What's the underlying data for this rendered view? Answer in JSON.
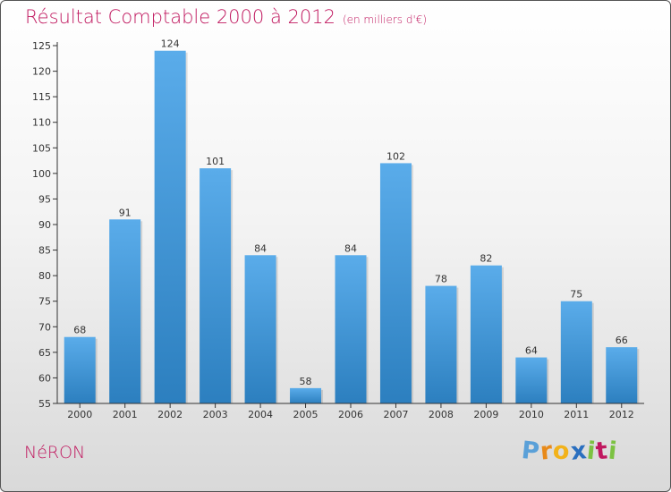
{
  "chart_data": {
    "type": "bar",
    "title": "Résultat Comptable 2000 à 2012",
    "subtitle": "(en milliers d'€)",
    "categories": [
      "2000",
      "2001",
      "2002",
      "2003",
      "2004",
      "2005",
      "2006",
      "2007",
      "2008",
      "2009",
      "2010",
      "2011",
      "2012"
    ],
    "values": [
      68,
      91,
      124,
      101,
      84,
      58,
      84,
      102,
      78,
      82,
      64,
      75,
      66
    ],
    "ylim": [
      55,
      125
    ],
    "yticks": [
      55,
      60,
      65,
      70,
      75,
      80,
      85,
      90,
      95,
      100,
      105,
      110,
      115,
      120,
      125
    ],
    "xlabel": "",
    "ylabel": "",
    "grid": false,
    "bar_color_top": "#5aacea",
    "bar_color_bottom": "#2c7fbf"
  },
  "footer": {
    "town": "NéRON",
    "logo_letters": [
      "P",
      "r",
      "o",
      "x",
      "i",
      "t",
      "i"
    ],
    "logo_colors": [
      "#5aa0d8",
      "#e88a1a",
      "#f2b21a",
      "#2a6fbf",
      "#7cc242",
      "#c0185f",
      "#7cc242"
    ]
  },
  "colors": {
    "title": "#c0185f",
    "axis": "#333333"
  }
}
